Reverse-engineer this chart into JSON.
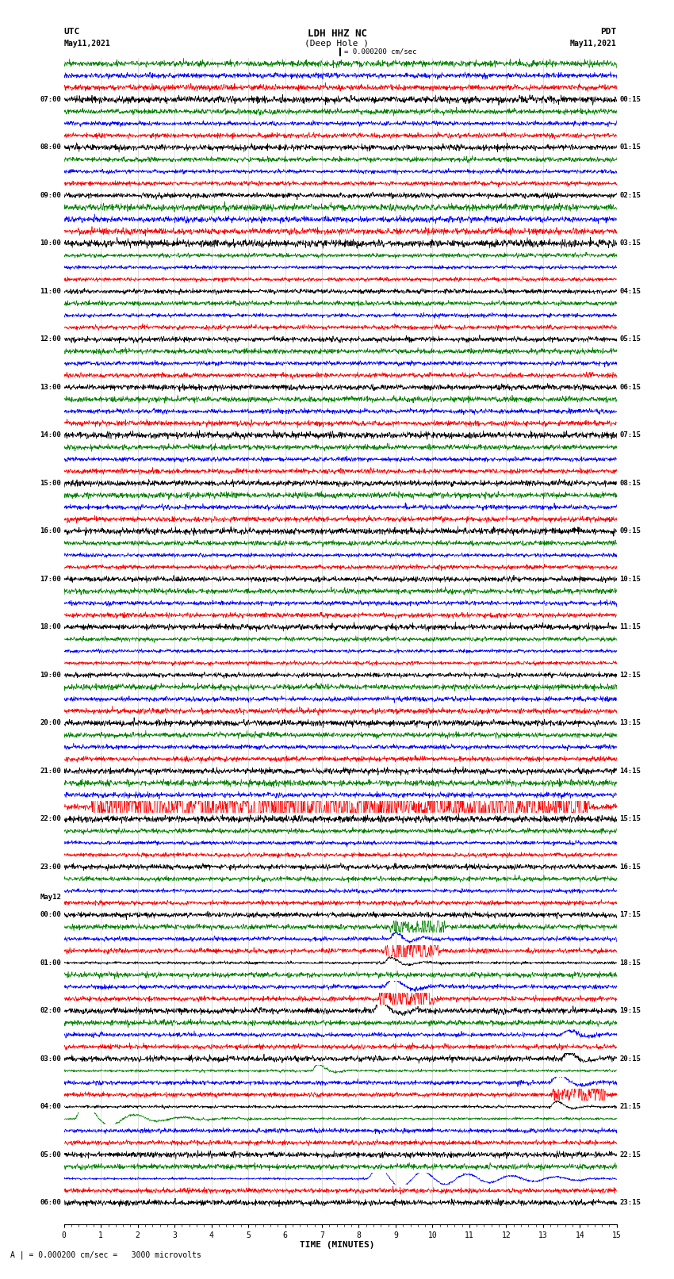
{
  "title_center": "LDH HHZ NC",
  "title_sub": "(Deep Hole )",
  "title_left_top": "UTC",
  "title_left_bot": "May11,2021",
  "title_right_top": "PDT",
  "title_right_bot": "May11,2021",
  "scale_label": "| = 0.000200 cm/sec",
  "bottom_label": "A | = 0.000200 cm/sec =   3000 microvolts",
  "xlabel": "TIME (MINUTES)",
  "xlim": [
    0,
    15
  ],
  "xticks": [
    0,
    1,
    2,
    3,
    4,
    5,
    6,
    7,
    8,
    9,
    10,
    11,
    12,
    13,
    14,
    15
  ],
  "utc_times": [
    "07:00",
    "08:00",
    "09:00",
    "10:00",
    "11:00",
    "12:00",
    "13:00",
    "14:00",
    "15:00",
    "16:00",
    "17:00",
    "18:00",
    "19:00",
    "20:00",
    "21:00",
    "22:00",
    "23:00",
    "May12|00:00",
    "01:00",
    "02:00",
    "03:00",
    "04:00",
    "05:00",
    "06:00"
  ],
  "pdt_times": [
    "00:15",
    "01:15",
    "02:15",
    "03:15",
    "04:15",
    "05:15",
    "06:15",
    "07:15",
    "08:15",
    "09:15",
    "10:15",
    "11:15",
    "12:15",
    "13:15",
    "14:15",
    "15:15",
    "16:15",
    "17:15",
    "18:15",
    "19:15",
    "20:15",
    "21:15",
    "22:15",
    "23:15"
  ],
  "n_rows": 24,
  "traces_per_row": 4,
  "colors": [
    "black",
    "red",
    "blue",
    "green"
  ],
  "fig_width": 8.5,
  "fig_height": 16.13,
  "dpi": 100,
  "seed": 42,
  "n_pts": 1800,
  "base_amp": 0.25,
  "ylim_half": 1.0,
  "grid_color": "#888888",
  "grid_alpha": 0.5,
  "grid_lw": 0.4,
  "trace_lw": 0.5
}
